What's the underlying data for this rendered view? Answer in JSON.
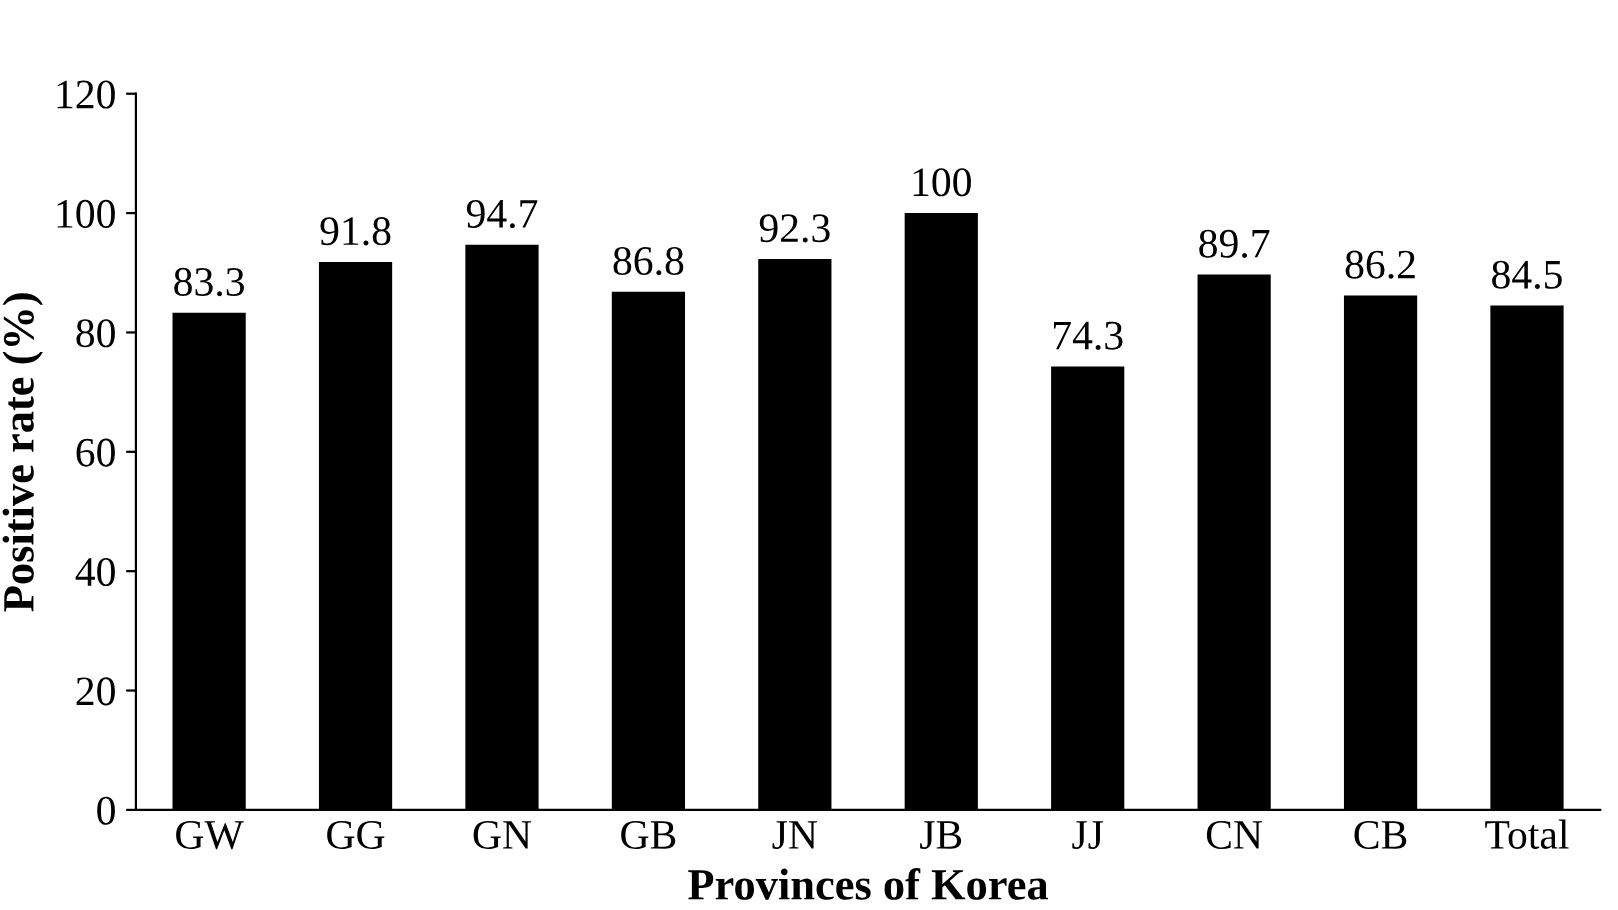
{
  "chart_data": {
    "type": "bar",
    "xlabel": "Provinces of Korea",
    "ylabel": "Positive rate (%)",
    "categories": [
      "GW",
      "GG",
      "GN",
      "GB",
      "JN",
      "JB",
      "JJ",
      "CN",
      "CB",
      "Total"
    ],
    "values": [
      83.3,
      91.8,
      94.7,
      86.8,
      92.3,
      100,
      74.3,
      89.7,
      86.2,
      84.5
    ],
    "color": "#000000",
    "ylim": [
      0,
      120
    ],
    "yticks": [
      0,
      20,
      40,
      60,
      80,
      100,
      120
    ],
    "data_labels": true,
    "grid": false,
    "legend": false
  }
}
